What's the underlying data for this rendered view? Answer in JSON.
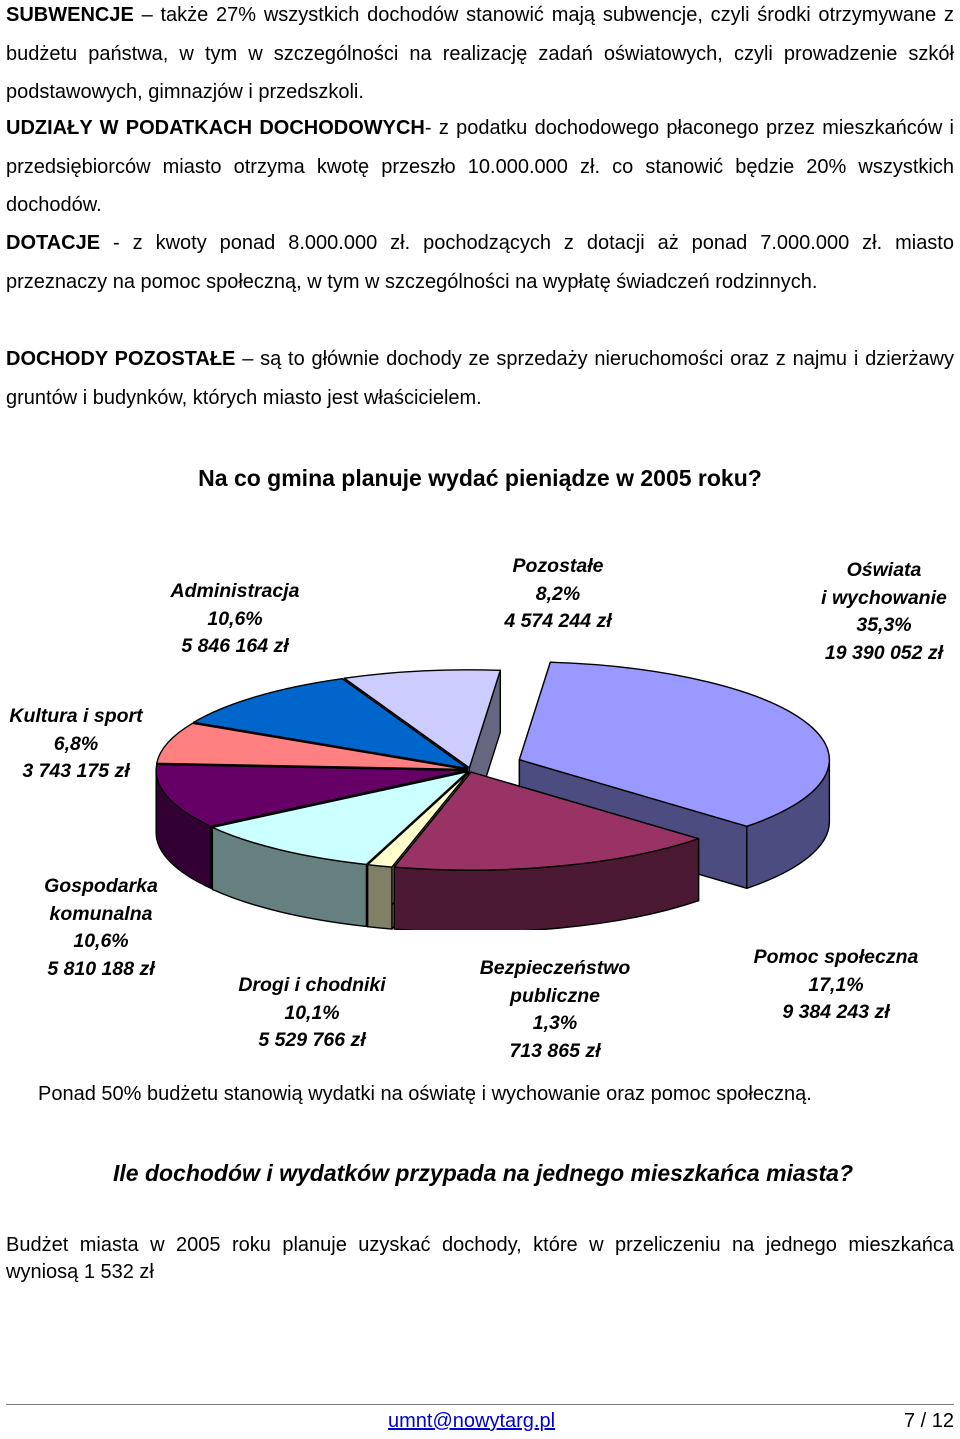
{
  "paragraphs": [
    {
      "key": "SUBWENCJE",
      "text": " – także 27% wszystkich dochodów stanowić mają subwencje, czyli środki otrzymywane z budżetu państwa, w tym w szczególności na realizację zadań oświatowych, czyli prowadzenie szkół podstawowych, gimnazjów i przedszkoli."
    },
    {
      "key": "UDZIAŁY W PODATKACH DOCHODOWYCH",
      "text": "- z podatku dochodowego płaconego przez mieszkańców i przedsiębiorców miasto otrzyma kwotę przeszło 10.000.000 zł. co stanowić będzie 20% wszystkich dochodów."
    },
    {
      "key": "DOTACJE",
      "text": " - z kwoty ponad 8.000.000 zł. pochodzących z dotacji aż ponad 7.000.000 zł. miasto przeznaczy na pomoc społeczną, w tym w szczególności na wypłatę świadczeń rodzinnych."
    },
    {
      "key": "DOCHODY POZOSTAŁE",
      "text": " – są to głównie dochody ze sprzedaży nieruchomości oraz z najmu i dzierżawy gruntów i budynków, których miasto jest właścicielem."
    }
  ],
  "chart_heading": "Na co gmina planuje wydać pieniądze w 2005 roku?",
  "chart_data": {
    "type": "pie",
    "title": "Na co gmina planuje wydać pieniądze w 2005 roku?",
    "slices": [
      {
        "label_lines": [
          "Oświata",
          "i wychowanie",
          "35,3%",
          "19 390 052 zł"
        ],
        "value": 35.3,
        "amount": "19 390 052 zł",
        "top": "#9999FF",
        "side": "#4C4C80",
        "exploded": true
      },
      {
        "label_lines": [
          "Pomoc społeczna",
          "17,1%",
          "9 384 243 zł"
        ],
        "value": 17.1,
        "amount": "9 384 243 zł",
        "top": "#993366",
        "side": "#4C1933",
        "exploded": false
      },
      {
        "label_lines": [
          "Bezpieczeństwo",
          "publiczne",
          "1,3%",
          "713 865 zł"
        ],
        "value": 1.3,
        "amount": "713 865 zł",
        "top": "#FFFFCC",
        "side": "#808066",
        "exploded": false
      },
      {
        "label_lines": [
          "Drogi i chodniki",
          "10,1%",
          "5 529 766 zł"
        ],
        "value": 10.1,
        "amount": "5 529 766 zł",
        "top": "#CCFFFF",
        "side": "#668080",
        "exploded": false
      },
      {
        "label_lines": [
          "Gospodarka",
          "komunalna",
          "10,6%",
          "5 810 188 zł"
        ],
        "value": 10.6,
        "amount": "5 810 188 zł",
        "top": "#660066",
        "side": "#330033",
        "exploded": false
      },
      {
        "label_lines": [
          "Kultura i sport",
          "6,8%",
          "3 743 175 zł"
        ],
        "value": 6.8,
        "amount": "3 743 175 zł",
        "top": "#FF8080",
        "side": "#804040",
        "exploded": false
      },
      {
        "label_lines": [
          "Administracja",
          "10,6%",
          "5 846 164 zł"
        ],
        "value": 10.6,
        "amount": "5 846 164 zł",
        "top": "#0066CC",
        "side": "#003366",
        "exploded": false
      },
      {
        "label_lines": [
          "Pozostałe",
          "8,2%",
          "4 574 244 zł"
        ],
        "value": 8.2,
        "amount": "4 574 244 zł",
        "top": "#CCCCFF",
        "side": "#666680",
        "exploded": false
      }
    ]
  },
  "note": "Ponad 50% budżetu stanowią wydatki na oświatę i wychowanie oraz pomoc społeczną.",
  "question_heading": "Ile dochodów i wydatków przypada na jednego mieszkańca miasta?",
  "final_text": "Budżet miasta w 2005 roku planuje uzyskać dochody, które w przeliczeniu na jednego mieszkańca wyniosą 1 532 zł",
  "footer": {
    "link": "umnt@nowytarg.pl",
    "page": "7 / 12"
  }
}
